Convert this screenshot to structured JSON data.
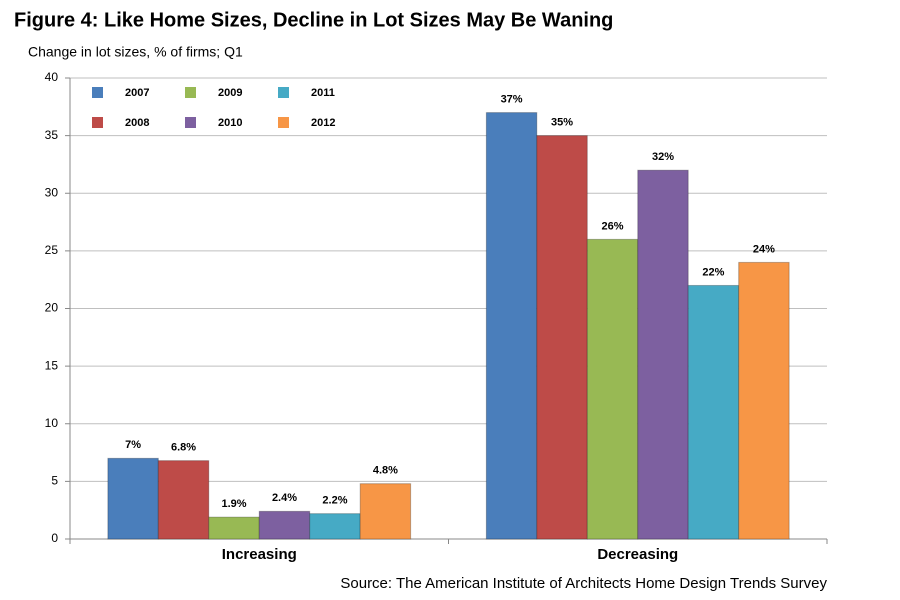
{
  "chart_data": {
    "type": "bar",
    "title": "Figure 4: Like Home Sizes, Decline in Lot Sizes May Be Waning",
    "subtitle": "Change in lot sizes, % of firms; Q1",
    "source": "Source: The American Institute of Architects Home Design Trends Survey",
    "categories": [
      "Increasing",
      "Decreasing"
    ],
    "series": [
      {
        "name": "2007",
        "color": "#4a7ebb",
        "values": [
          7,
          37
        ],
        "value_labels": [
          "7%",
          "37%"
        ]
      },
      {
        "name": "2008",
        "color": "#be4b48",
        "values": [
          6.8,
          35
        ],
        "value_labels": [
          "6.8%",
          "35%"
        ]
      },
      {
        "name": "2009",
        "color": "#98b954",
        "values": [
          1.9,
          26
        ],
        "value_labels": [
          "1.9%",
          "26%"
        ]
      },
      {
        "name": "2010",
        "color": "#7d60a0",
        "values": [
          2.4,
          32
        ],
        "value_labels": [
          "2.4%",
          "32%"
        ]
      },
      {
        "name": "2011",
        "color": "#46aac5",
        "values": [
          2.2,
          22
        ],
        "value_labels": [
          "2.2%",
          "22%"
        ]
      },
      {
        "name": "2012",
        "color": "#f79646",
        "values": [
          4.8,
          24
        ],
        "value_labels": [
          "4.8%",
          "24%"
        ]
      }
    ],
    "ylim": [
      0,
      40
    ],
    "yticks": [
      0,
      5,
      10,
      15,
      20,
      25,
      30,
      35,
      40
    ],
    "grid": true,
    "legend": "top-left"
  }
}
